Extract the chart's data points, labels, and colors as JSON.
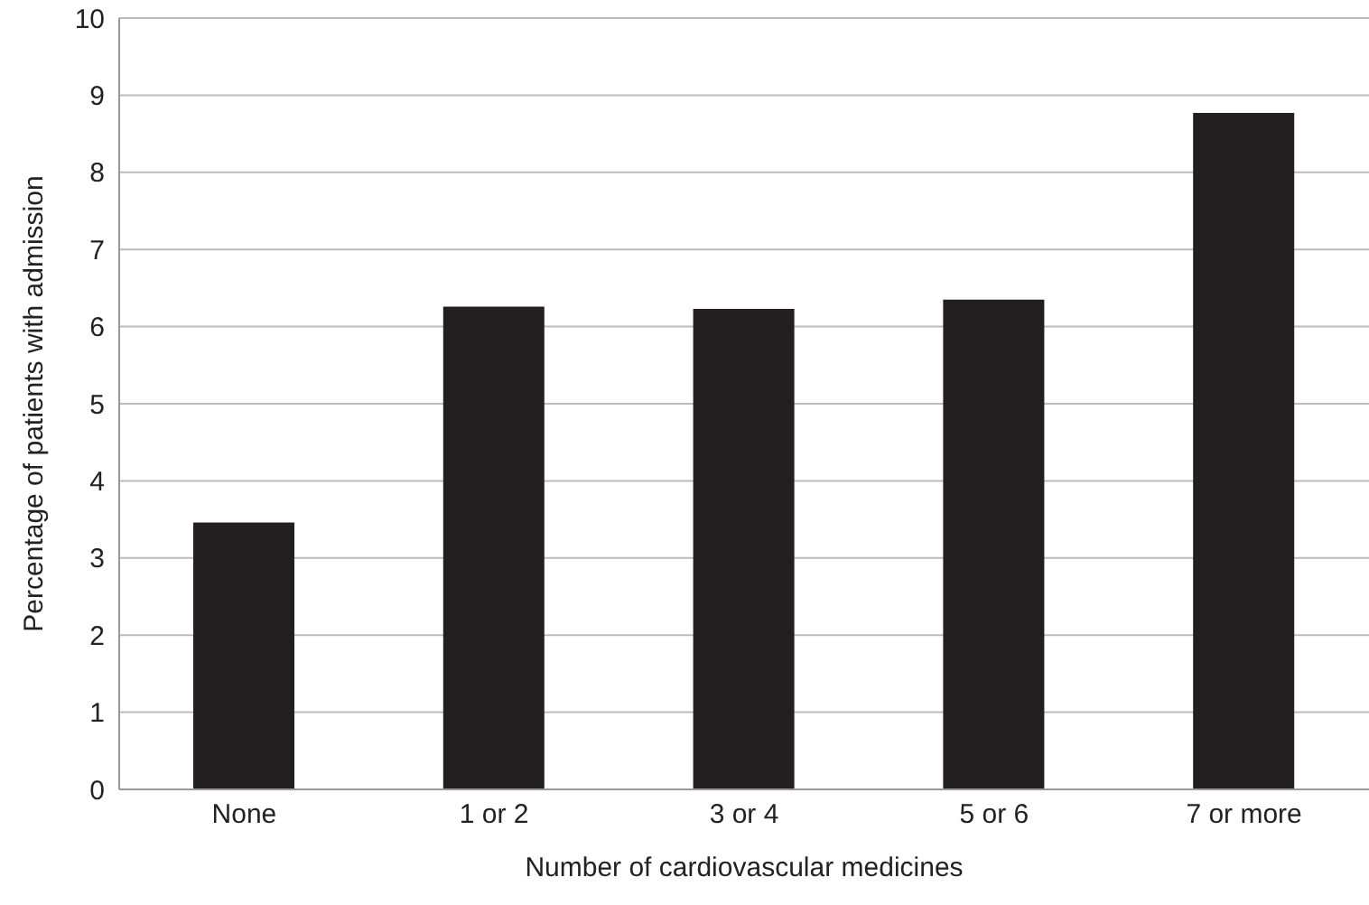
{
  "chart_data": {
    "type": "bar",
    "xlabel": "Number of cardiovascular medicines",
    "ylabel": "Percentage of patients with admission",
    "categories": [
      "None",
      "1 or 2",
      "3 or 4",
      "5 or 6",
      "7 or more"
    ],
    "values": [
      3.46,
      6.26,
      6.23,
      6.35,
      8.77
    ],
    "color": "#231f20",
    "ylim": [
      0,
      10
    ],
    "yticks": [
      0,
      1,
      2,
      3,
      4,
      5,
      6,
      7,
      8,
      9,
      10
    ],
    "grid": "y"
  }
}
